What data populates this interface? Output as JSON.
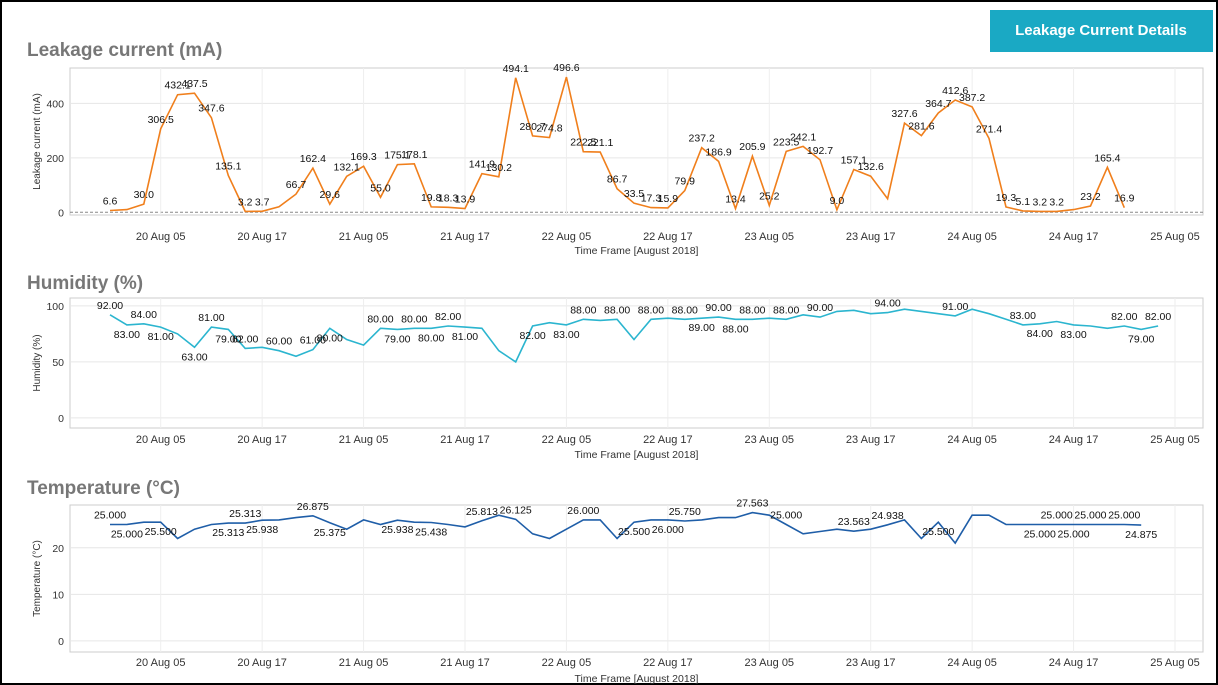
{
  "button": "Leakage Current Details",
  "chart_data": [
    {
      "type": "line",
      "title": "Leakage current  (mA)",
      "x_label": "Time Frame [August 2018]",
      "y_label": "Leakage current (mA)",
      "color": "#f07f1c",
      "categories": [
        null,
        null,
        null,
        "20 Aug 05",
        null,
        null,
        null,
        null,
        null,
        "20 Aug 17",
        null,
        null,
        null,
        null,
        null,
        "21 Aug 05",
        null,
        null,
        null,
        null,
        null,
        "21 Aug 17",
        null,
        null,
        null,
        null,
        null,
        "22 Aug 05",
        null,
        null,
        null,
        null,
        null,
        "22 Aug 17",
        null,
        null,
        null,
        null,
        null,
        "23 Aug 05",
        null,
        null,
        null,
        null,
        null,
        "23 Aug 17",
        null,
        null,
        null,
        null,
        null,
        "24 Aug 05",
        null,
        null,
        null,
        null,
        null,
        "24 Aug 17",
        null,
        null,
        null,
        null,
        null,
        "25 Aug 05"
      ],
      "values": [
        6.6,
        10,
        30,
        306.5,
        432.1,
        437.5,
        347.6,
        135.1,
        3.2,
        3.7,
        20,
        66.7,
        162.4,
        29.6,
        132.1,
        169.3,
        55,
        175.1,
        178.1,
        19.8,
        18.3,
        13.9,
        141.9,
        130.2,
        494.1,
        280.7,
        274.8,
        496.6,
        222.5,
        221.1,
        86.7,
        33.5,
        17.3,
        15.9,
        79.9,
        237.2,
        186.9,
        13.4,
        205.9,
        25.2,
        223.5,
        242.1,
        192.7,
        9,
        157.1,
        132.6,
        50,
        327.6,
        281.6,
        364.7,
        412.6,
        387.2,
        271.4,
        19.3,
        5.1,
        3.2,
        3.2,
        10,
        23.2,
        165.4,
        16.9,
        null,
        null,
        null
      ],
      "value_labels": [
        "6.6",
        null,
        "30.0",
        "306.5",
        "432.1",
        "437.5",
        "347.6",
        "135.1",
        "3.2",
        "3.7",
        null,
        "66.7",
        "162.4",
        "29.6",
        "132.1",
        "169.3",
        "55.0",
        "175.1",
        "178.1",
        "19.8",
        "18.3",
        "13.9",
        "141.9",
        "130.2",
        "494.1",
        "280.7",
        "274.8",
        "496.6",
        "222.5",
        "221.1",
        "86.7",
        "33.5",
        "17.3",
        "15.9",
        "79.9",
        "237.2",
        "186.9",
        "13.4",
        "205.9",
        "25.2",
        "223.5",
        "242.1",
        "192.7",
        "9.0",
        "157.1",
        "132.6",
        null,
        "327.6",
        "281.6",
        "364.7",
        "412.6",
        "387.2",
        "271.4",
        "19.3",
        "5.1",
        "3.2",
        "3.2",
        null,
        "23.2",
        "165.4",
        "16.9",
        null,
        null,
        null
      ],
      "ylim": [
        -10,
        530
      ],
      "yticks": [
        0,
        200,
        400
      ],
      "grid": true
    },
    {
      "type": "line",
      "title": "Humidity (%)",
      "x_label": "Time Frame [August 2018]",
      "y_label": "Humidity (%)",
      "color": "#2bb5cf",
      "categories": [
        null,
        null,
        null,
        "20 Aug 05",
        null,
        null,
        null,
        null,
        null,
        "20 Aug 17",
        null,
        null,
        null,
        null,
        null,
        "21 Aug 05",
        null,
        null,
        null,
        null,
        null,
        "21 Aug 17",
        null,
        null,
        null,
        null,
        null,
        "22 Aug 05",
        null,
        null,
        null,
        null,
        null,
        "22 Aug 17",
        null,
        null,
        null,
        null,
        null,
        "23 Aug 05",
        null,
        null,
        null,
        null,
        null,
        "23 Aug 17",
        null,
        null,
        null,
        null,
        null,
        "24 Aug 05",
        null,
        null,
        null,
        null,
        null,
        "24 Aug 17",
        null,
        null,
        null,
        null,
        null,
        "25 Aug 05"
      ],
      "values": [
        92,
        83,
        84,
        81,
        75,
        63,
        81,
        79,
        62,
        63,
        60,
        55,
        61,
        80,
        70,
        65,
        80,
        79,
        80,
        80,
        82,
        81,
        80,
        60,
        50,
        82,
        85,
        83,
        88,
        87,
        88,
        70,
        88,
        89,
        88,
        89,
        90,
        88,
        88,
        89,
        88,
        92,
        90,
        95,
        96,
        93,
        94,
        97,
        95,
        93,
        91,
        97,
        93,
        88,
        83,
        84,
        86,
        83,
        82,
        80,
        82,
        79,
        82,
        null
      ],
      "value_labels": [
        "92.00",
        "83.00",
        "84.00",
        "81.00",
        null,
        "63.00",
        "81.00",
        "79.00",
        "62.00",
        null,
        "60.00",
        null,
        "61.00",
        "80.00",
        null,
        null,
        "80.00",
        "79.00",
        "80.00",
        "80.00",
        "82.00",
        "81.00",
        null,
        null,
        null,
        "82.00",
        null,
        "83.00",
        "88.00",
        null,
        "88.00",
        null,
        "88.00",
        null,
        "88.00",
        "89.00",
        "90.00",
        "88.00",
        "88.00",
        null,
        "88.00",
        null,
        "90.00",
        null,
        null,
        null,
        "94.00",
        null,
        null,
        null,
        "91.00",
        null,
        null,
        null,
        "83.00",
        "84.00",
        null,
        "83.00",
        null,
        null,
        "82.00",
        "79.00",
        "82.00",
        null
      ],
      "ylim": [
        -9,
        107
      ],
      "yticks": [
        0,
        50,
        100
      ],
      "grid": true
    },
    {
      "type": "line",
      "title": "Temperature (°C)",
      "x_label": "Time Frame [August 2018]",
      "y_label": "Temperature (°C)",
      "color": "#1f5ea8",
      "categories": [
        null,
        null,
        null,
        "20 Aug 05",
        null,
        null,
        null,
        null,
        null,
        "20 Aug 17",
        null,
        null,
        null,
        null,
        null,
        "21 Aug 05",
        null,
        null,
        null,
        null,
        null,
        "21 Aug 17",
        null,
        null,
        null,
        null,
        null,
        "22 Aug 05",
        null,
        null,
        null,
        null,
        null,
        "22 Aug 17",
        null,
        null,
        null,
        null,
        null,
        "23 Aug 05",
        null,
        null,
        null,
        null,
        null,
        "23 Aug 17",
        null,
        null,
        null,
        null,
        null,
        "24 Aug 05",
        null,
        null,
        null,
        null,
        null,
        "24 Aug 17",
        null,
        null,
        null,
        null,
        null,
        "25 Aug 05"
      ],
      "values": [
        25,
        25,
        25.5,
        25.5,
        22,
        24,
        25,
        25.313,
        25.313,
        25.938,
        26,
        26.5,
        26.875,
        25.375,
        24,
        26,
        25,
        25.938,
        25.5,
        25.438,
        25,
        24.5,
        25.813,
        27,
        26.125,
        23,
        22,
        24,
        26,
        26,
        22,
        25.5,
        26,
        26,
        25.75,
        26,
        26.5,
        26.5,
        27.563,
        27,
        25,
        23,
        23.5,
        24,
        23.563,
        24,
        24.938,
        26,
        22,
        25.5,
        21,
        27,
        27,
        25,
        25,
        25,
        25,
        25,
        25,
        25,
        25,
        24.875,
        null,
        null
      ],
      "value_labels": [
        "25.000",
        "25.000",
        null,
        "25.500",
        null,
        null,
        null,
        "25.313",
        "25.313",
        "25.938",
        null,
        null,
        "26.875",
        "25.375",
        null,
        null,
        null,
        "25.938",
        null,
        "25.438",
        null,
        null,
        "25.813",
        null,
        "26.125",
        null,
        null,
        null,
        "26.000",
        null,
        null,
        "25.500",
        null,
        "26.000",
        "25.750",
        null,
        null,
        null,
        "27.563",
        null,
        "25.000",
        null,
        null,
        null,
        "23.563",
        null,
        "24.938",
        null,
        null,
        "25.500",
        null,
        null,
        null,
        null,
        null,
        "25.000",
        "25.000",
        "25.000",
        "25.000",
        null,
        "25.000",
        "24.875",
        null,
        null
      ],
      "ylim": [
        -2.4,
        29.2
      ],
      "yticks": [
        0,
        10,
        20
      ],
      "grid": true
    }
  ]
}
